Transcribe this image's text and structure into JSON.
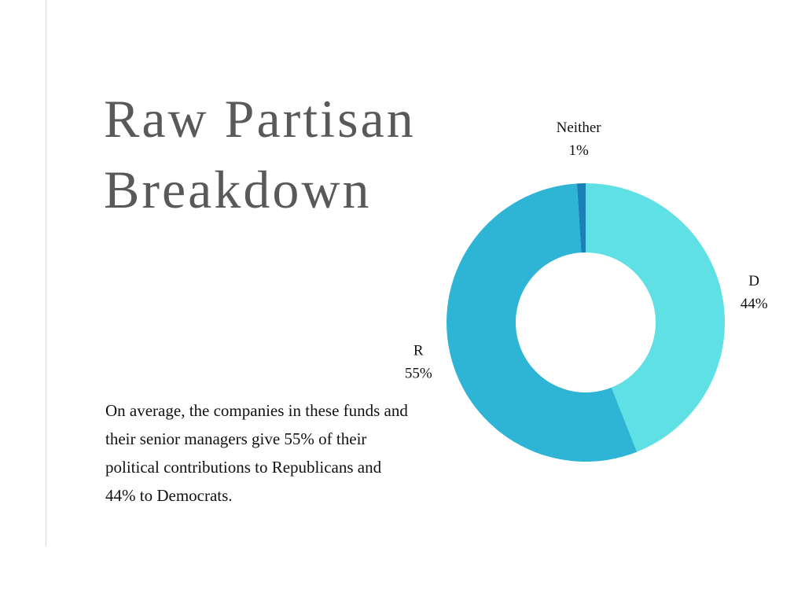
{
  "title_lines": [
    "Raw Partisan",
    "Breakdown"
  ],
  "body_text": "On average, the companies in these funds and their senior managers give 55% of their political contributions to Republicans and 44% to Democrats.",
  "colors": {
    "title": "#595959",
    "rule": "#d6d9dc"
  },
  "chart_data": {
    "type": "pie",
    "style": "donut",
    "title": "",
    "slices": [
      {
        "label": "D",
        "value": 44,
        "display": "44%",
        "color": "#5ee0e5"
      },
      {
        "label": "R",
        "value": 55,
        "display": "55%",
        "color": "#2eb5d5"
      },
      {
        "label": "Neither",
        "value": 1,
        "display": "1%",
        "color": "#1a80b6"
      }
    ],
    "start_angle_deg": 0,
    "direction": "clockwise",
    "legend": "none"
  }
}
